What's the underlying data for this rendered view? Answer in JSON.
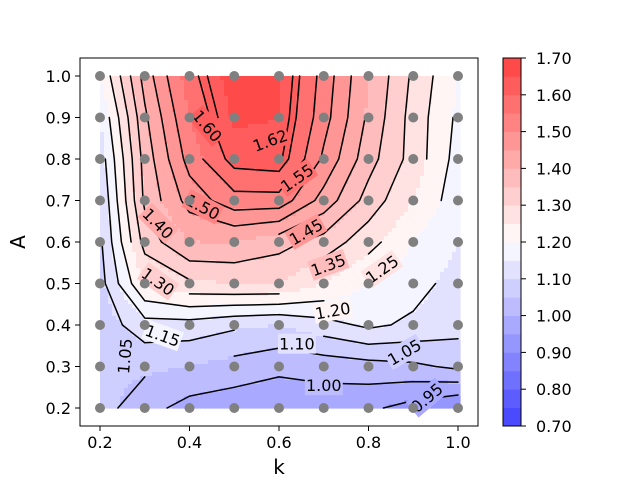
{
  "chart_data": {
    "type": "heatmap",
    "subtype": "filled-contour",
    "title": "",
    "xlabel": "k",
    "ylabel": "A",
    "xlim": [
      0.2,
      1.0
    ],
    "ylim": [
      0.2,
      1.0
    ],
    "xticks": [
      "0.2",
      "0.4",
      "0.6",
      "0.8",
      "1.0"
    ],
    "yticks": [
      "0.2",
      "0.3",
      "0.4",
      "0.5",
      "0.6",
      "0.7",
      "0.8",
      "0.9",
      "1.0"
    ],
    "x": [
      0.2,
      0.3,
      0.4,
      0.5,
      0.6,
      0.7,
      0.8,
      0.9,
      1.0
    ],
    "y": [
      0.2,
      0.3,
      0.4,
      0.5,
      0.6,
      0.7,
      0.8,
      0.9,
      1.0
    ],
    "z": [
      [
        1.07,
        1.02,
        0.98,
        0.97,
        0.97,
        0.97,
        0.96,
        0.93,
        0.9
      ],
      [
        1.06,
        1.06,
        1.05,
        1.03,
        1.01,
        1.02,
        1.03,
        1.04,
        1.06
      ],
      [
        1.07,
        1.13,
        1.13,
        1.11,
        1.1,
        1.13,
        1.16,
        1.14,
        1.12
      ],
      [
        1.08,
        1.25,
        1.29,
        1.3,
        1.3,
        1.25,
        1.2,
        1.17,
        1.13
      ],
      [
        1.09,
        1.32,
        1.4,
        1.4,
        1.37,
        1.33,
        1.27,
        1.2,
        1.15
      ],
      [
        1.1,
        1.36,
        1.47,
        1.53,
        1.53,
        1.43,
        1.33,
        1.25,
        1.17
      ],
      [
        1.12,
        1.37,
        1.52,
        1.62,
        1.63,
        1.49,
        1.37,
        1.28,
        1.18
      ],
      [
        1.15,
        1.39,
        1.55,
        1.66,
        1.65,
        1.52,
        1.39,
        1.28,
        1.19
      ],
      [
        1.2,
        1.42,
        1.58,
        1.68,
        1.66,
        1.53,
        1.4,
        1.29,
        1.2
      ]
    ],
    "contour_lines": [
      0.95,
      1.0,
      1.05,
      1.1,
      1.15,
      1.2,
      1.25,
      1.3,
      1.35,
      1.4,
      1.45,
      1.5,
      1.55,
      1.6,
      1.62
    ],
    "contour_labels": [
      {
        "text": "1.60",
        "k": 0.44,
        "A": 0.88,
        "angle": 50
      },
      {
        "text": "1.62",
        "k": 0.58,
        "A": 0.845,
        "angle": -20
      },
      {
        "text": "1.55",
        "k": 0.64,
        "A": 0.755,
        "angle": -35
      },
      {
        "text": "1.50",
        "k": 0.43,
        "A": 0.685,
        "angle": 28
      },
      {
        "text": "1.45",
        "k": 0.66,
        "A": 0.625,
        "angle": -30
      },
      {
        "text": "1.40",
        "k": 0.33,
        "A": 0.645,
        "angle": 45
      },
      {
        "text": "1.35",
        "k": 0.71,
        "A": 0.545,
        "angle": -20
      },
      {
        "text": "1.30",
        "k": 0.33,
        "A": 0.505,
        "angle": 35
      },
      {
        "text": "1.25",
        "k": 0.83,
        "A": 0.535,
        "angle": -35
      },
      {
        "text": "1.20",
        "k": 0.72,
        "A": 0.435,
        "angle": -10
      },
      {
        "text": "1.15",
        "k": 0.34,
        "A": 0.375,
        "angle": 20
      },
      {
        "text": "1.10",
        "k": 0.64,
        "A": 0.355,
        "angle": 0
      },
      {
        "text": "1.05",
        "k": 0.88,
        "A": 0.335,
        "angle": -30
      },
      {
        "text": "1.05",
        "k": 0.255,
        "A": 0.325,
        "angle": -85
      },
      {
        "text": "1.00",
        "k": 0.7,
        "A": 0.255,
        "angle": 0
      },
      {
        "text": "0.95",
        "k": 0.93,
        "A": 0.225,
        "angle": -40
      }
    ],
    "colormap": "bwr",
    "levels": [
      0.7,
      0.75,
      0.8,
      0.85,
      0.9,
      0.95,
      1.0,
      1.05,
      1.1,
      1.15,
      1.2,
      1.25,
      1.3,
      1.35,
      1.4,
      1.45,
      1.5,
      1.55,
      1.6,
      1.65,
      1.7
    ],
    "colorbar": {
      "range": [
        0.7,
        1.7
      ],
      "ticks": [
        "0.70",
        "0.80",
        "0.90",
        "1.00",
        "1.10",
        "1.20",
        "1.30",
        "1.40",
        "1.50",
        "1.60",
        "1.70"
      ]
    },
    "sample_points_color": "#808080",
    "colors": {
      "low": "#4040ff",
      "mid": "#ffffff",
      "high": "#ff4040"
    },
    "grid": false,
    "legend": "none"
  }
}
